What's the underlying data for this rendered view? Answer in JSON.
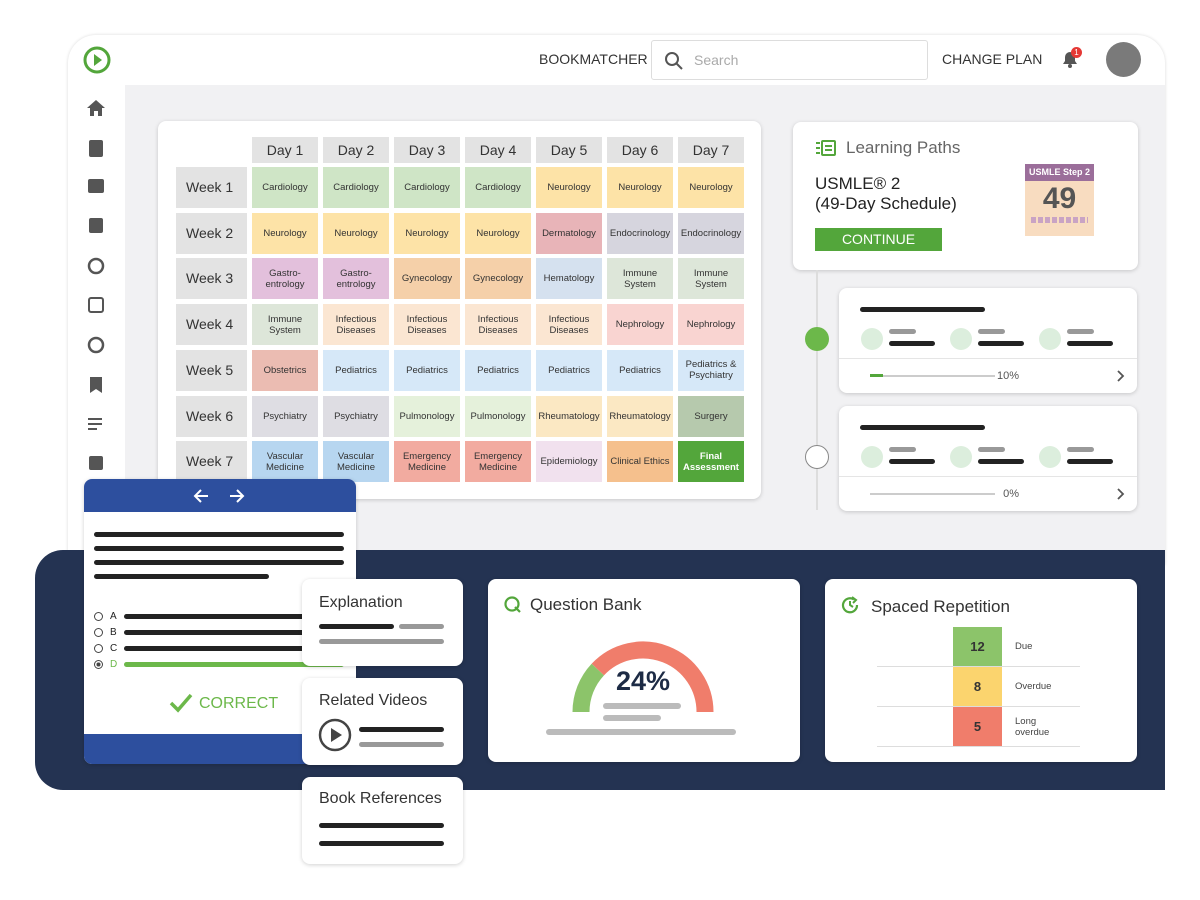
{
  "header": {
    "nav": "BOOKMATCHER",
    "search_placeholder": "Search",
    "change_plan": "CHANGE PLAN",
    "notifications": "1"
  },
  "schedule": {
    "days": [
      "Day 1",
      "Day 2",
      "Day 3",
      "Day 4",
      "Day 5",
      "Day 6",
      "Day 7"
    ],
    "weeks": [
      {
        "label": "Week 1",
        "cells": [
          {
            "text": "Cardiology",
            "color": "#cfe5c6"
          },
          {
            "text": "Cardiology",
            "color": "#cfe5c6"
          },
          {
            "text": "Cardiology",
            "color": "#cfe5c6"
          },
          {
            "text": "Cardiology",
            "color": "#cfe5c6"
          },
          {
            "text": "Neurology",
            "color": "#fde3a7"
          },
          {
            "text": "Neurology",
            "color": "#fde3a7"
          },
          {
            "text": "Neurology",
            "color": "#fde3a7"
          }
        ]
      },
      {
        "label": "Week 2",
        "cells": [
          {
            "text": "Neurology",
            "color": "#fde3a7"
          },
          {
            "text": "Neurology",
            "color": "#fde3a7"
          },
          {
            "text": "Neurology",
            "color": "#fde3a7"
          },
          {
            "text": "Neurology",
            "color": "#fde3a7"
          },
          {
            "text": "Dermatology",
            "color": "#e8b4b8"
          },
          {
            "text": "Endocrinology",
            "color": "#d6d5de"
          },
          {
            "text": "Endocrinology",
            "color": "#d6d5de"
          }
        ]
      },
      {
        "label": "Week 3",
        "cells": [
          {
            "text": "Gastro-\nentrology",
            "color": "#e3c0dc"
          },
          {
            "text": "Gastro-\nentrology",
            "color": "#e3c0dc"
          },
          {
            "text": "Gynecology",
            "color": "#f5d0a9"
          },
          {
            "text": "Gynecology",
            "color": "#f5d0a9"
          },
          {
            "text": "Hematology",
            "color": "#d5e1ef"
          },
          {
            "text": "Immune\nSystem",
            "color": "#dde6d9"
          },
          {
            "text": "Immune\nSystem",
            "color": "#dde6d9"
          }
        ]
      },
      {
        "label": "Week 4",
        "cells": [
          {
            "text": "Immune\nSystem",
            "color": "#dde6d9"
          },
          {
            "text": "Infectious\nDiseases",
            "color": "#fbe6d2"
          },
          {
            "text": "Infectious\nDiseases",
            "color": "#fbe6d2"
          },
          {
            "text": "Infectious\nDiseases",
            "color": "#fbe6d2"
          },
          {
            "text": "Infectious\nDiseases",
            "color": "#fbe6d2"
          },
          {
            "text": "Nephrology",
            "color": "#f9d4d1"
          },
          {
            "text": "Nephrology",
            "color": "#f9d4d1"
          }
        ]
      },
      {
        "label": "Week 5",
        "cells": [
          {
            "text": "Obstetrics",
            "color": "#ebbcb2"
          },
          {
            "text": "Pediatrics",
            "color": "#d6e8f8"
          },
          {
            "text": "Pediatrics",
            "color": "#d6e8f8"
          },
          {
            "text": "Pediatrics",
            "color": "#d6e8f8"
          },
          {
            "text": "Pediatrics",
            "color": "#d6e8f8"
          },
          {
            "text": "Pediatrics",
            "color": "#d6e8f8"
          },
          {
            "text": "Pediatrics &\nPsychiatry",
            "color": "#d6e8f8"
          }
        ]
      },
      {
        "label": "Week 6",
        "cells": [
          {
            "text": "Psychiatry",
            "color": "#dedde3"
          },
          {
            "text": "Psychiatry",
            "color": "#dedde3"
          },
          {
            "text": "Pulmonology",
            "color": "#e5f1db"
          },
          {
            "text": "Pulmonology",
            "color": "#e5f1db"
          },
          {
            "text": "Rheumatology",
            "color": "#fbe8c3"
          },
          {
            "text": "Rheumatology",
            "color": "#fbe8c3"
          },
          {
            "text": "Surgery",
            "color": "#b6c9ad"
          }
        ]
      },
      {
        "label": "Week 7",
        "cells": [
          {
            "text": "Vascular\nMedicine",
            "color": "#b7d6f0"
          },
          {
            "text": "Vascular\nMedicine",
            "color": "#b7d6f0"
          },
          {
            "text": "Emergency\nMedicine",
            "color": "#f2aba0"
          },
          {
            "text": "Emergency\nMedicine",
            "color": "#f2aba0"
          },
          {
            "text": "Epidemiology",
            "color": "#f1e1ee"
          },
          {
            "text": "Clinical Ethics",
            "color": "#f5c08d"
          },
          {
            "text": "Final\nAssessment",
            "color": "#53a63b"
          }
        ]
      }
    ]
  },
  "learning_paths": {
    "title": "Learning Paths",
    "plan_line1": "USMLE® 2",
    "plan_line2": "(49-Day Schedule)",
    "button": "CONTINUE",
    "badge_title": "USMLE Step 2",
    "badge_number": "49",
    "paths": [
      {
        "progress": {
          "value": 10,
          "label": "10%"
        }
      },
      {
        "progress": {
          "value": 0,
          "label": "0%"
        }
      }
    ]
  },
  "quiz": {
    "options": [
      "A",
      "B",
      "C",
      "D"
    ],
    "selected_index": 3,
    "result": "CORRECT"
  },
  "resources": [
    "Explanation",
    "Related Videos",
    "Book References"
  ],
  "question_bank": {
    "title": "Question Bank",
    "score": {
      "value": 24,
      "label": "24%"
    }
  },
  "spaced_repetition": {
    "title": "Spaced Repetition",
    "items": [
      {
        "count": "12",
        "label": "Due",
        "color": "#8cc46a"
      },
      {
        "count": "8",
        "label": "Overdue",
        "color": "#fbd46e"
      },
      {
        "count": "5",
        "label": "Long\noverdue",
        "color": "#f07d6b"
      }
    ]
  }
}
